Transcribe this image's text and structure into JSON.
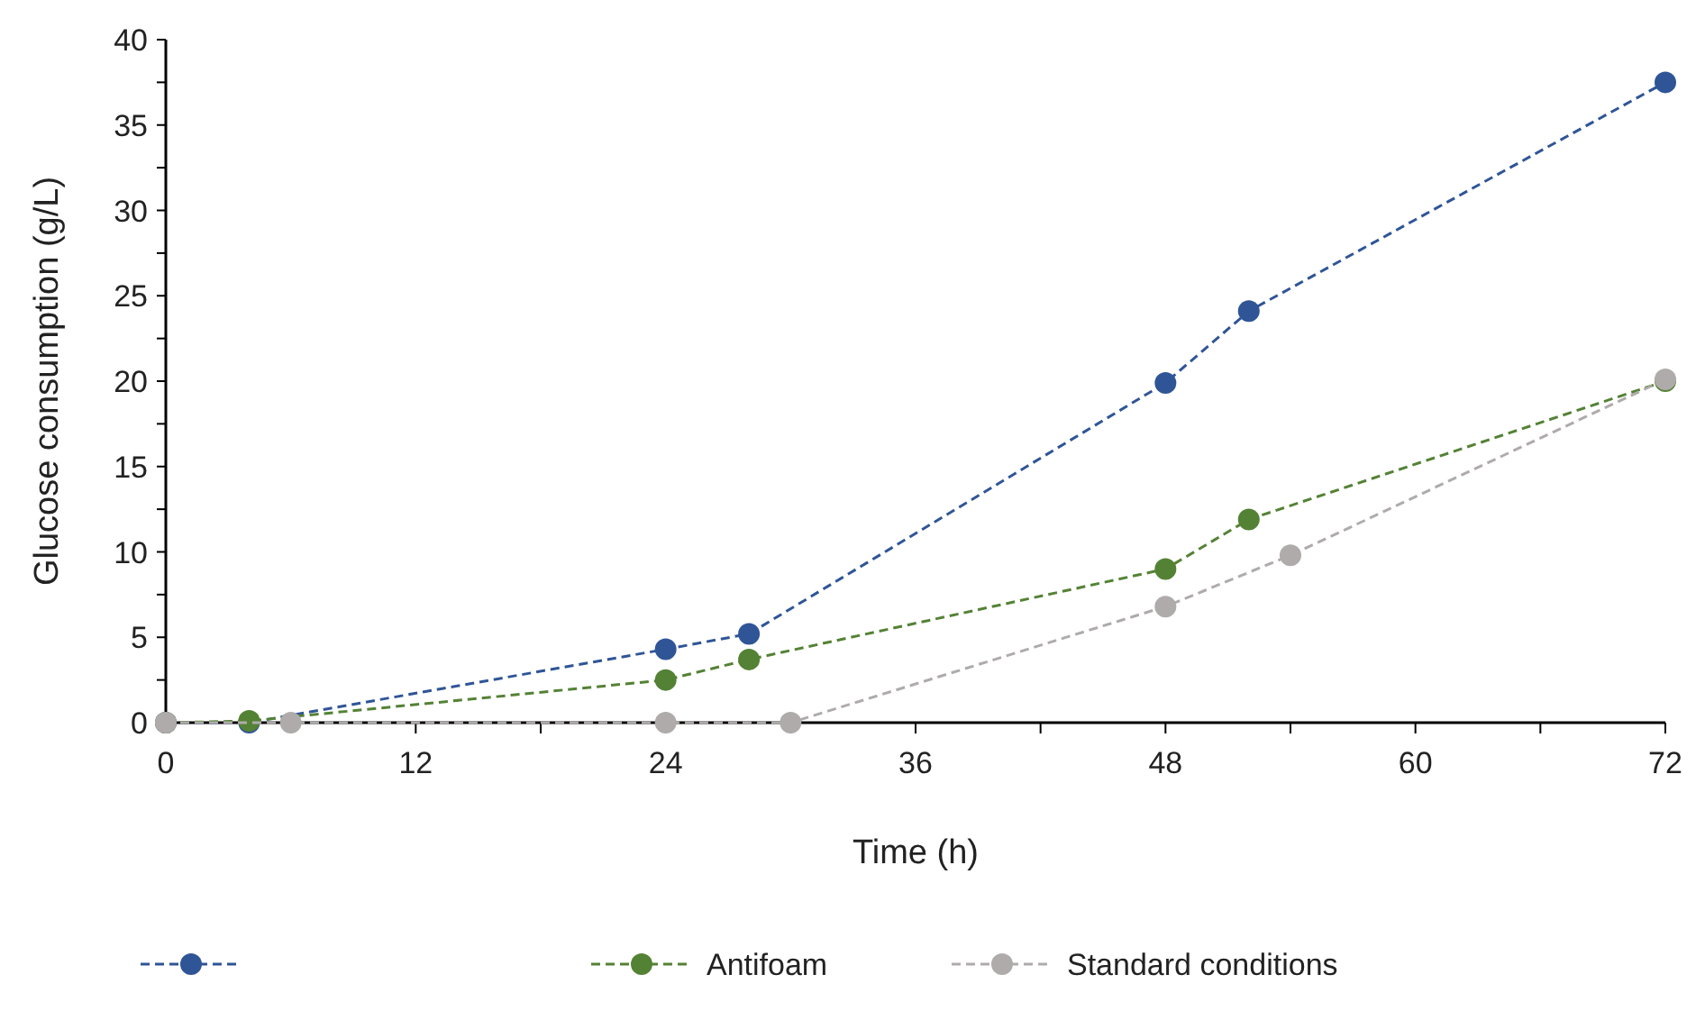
{
  "chart_data": {
    "type": "line",
    "xlabel": "Time (h)",
    "ylabel": "Glucose consumption (g/L)",
    "xlim": [
      0,
      72
    ],
    "xticks": [
      0,
      {
        "value": 6,
        "label": null
      },
      12,
      {
        "value": 18,
        "label": null
      },
      24,
      {
        "value": 30,
        "label": null
      },
      36,
      {
        "value": 42,
        "label": null
      },
      48,
      {
        "value": 54,
        "label": null
      },
      60,
      {
        "value": 66,
        "label": null
      },
      72
    ],
    "ylim": [
      0,
      40
    ],
    "yticks": [
      0,
      {
        "value": 2.5,
        "label": null
      },
      5,
      {
        "value": 7.5,
        "label": null
      },
      10,
      {
        "value": 12.5,
        "label": null
      },
      15,
      {
        "value": 17.5,
        "label": null
      },
      20,
      {
        "value": 22.5,
        "label": null
      },
      25,
      {
        "value": 27.5,
        "label": null
      },
      30,
      {
        "value": 32.5,
        "label": null
      },
      35,
      {
        "value": 37.5,
        "label": null
      },
      40
    ],
    "marker": "circle",
    "line_style": "dashed",
    "legend": "bottom",
    "series": [
      {
        "color": "#2f5597",
        "x": [
          0,
          4,
          24,
          28,
          48,
          52,
          72
        ],
        "values": [
          0,
          0,
          4.3,
          5.2,
          19.9,
          24.1,
          37.5
        ]
      },
      {
        "name": "Antifoam",
        "color": "#548235",
        "x": [
          0,
          4,
          24,
          28,
          48,
          52,
          72
        ],
        "values": [
          0,
          0.1,
          2.5,
          3.7,
          9.0,
          11.9,
          20.0
        ]
      },
      {
        "name": "Standard conditions",
        "color": "#afabab",
        "x": [
          0,
          6,
          24,
          30,
          48,
          54,
          72
        ],
        "values": [
          0,
          0,
          0,
          0,
          6.8,
          9.8,
          20.1
        ]
      }
    ]
  }
}
